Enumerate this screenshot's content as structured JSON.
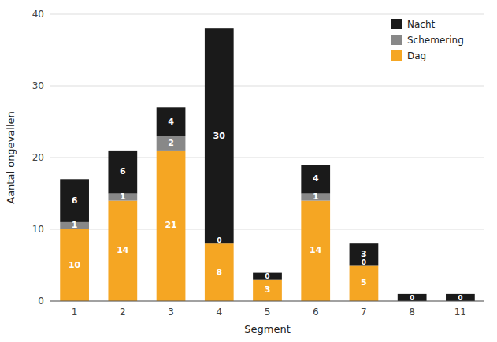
{
  "chart_data": {
    "type": "bar",
    "stacked": true,
    "xlabel": "Segment",
    "ylabel": "Aantal ongevallen",
    "categories": [
      "1",
      "2",
      "3",
      "4",
      "5",
      "6",
      "7",
      "8",
      "11"
    ],
    "series": [
      {
        "name": "Dag",
        "color": "#F5A623",
        "values": [
          10,
          14,
          21,
          8,
          3,
          14,
          5,
          0,
          0
        ],
        "value_labels": [
          "10",
          "14",
          "21",
          "8",
          "3",
          "14",
          "5",
          null,
          null
        ]
      },
      {
        "name": "Schemering",
        "color": "#888888",
        "values": [
          1,
          1,
          2,
          0,
          0,
          1,
          0,
          0,
          0
        ],
        "value_labels": [
          "1",
          "1",
          "2",
          "0",
          "0",
          "1",
          "0",
          "0",
          "0"
        ]
      },
      {
        "name": "Nacht",
        "color": "#1a1a1a",
        "values": [
          6,
          6,
          4,
          30,
          1,
          4,
          3,
          1,
          1
        ],
        "value_labels": [
          "6",
          "6",
          "4",
          "30",
          null,
          "4",
          "3",
          null,
          null
        ]
      }
    ],
    "ylim": [
      0,
      40
    ],
    "yticks": [
      0,
      10,
      20,
      30,
      40
    ],
    "grid": true,
    "legend": "upper right",
    "data_labels": true
  }
}
